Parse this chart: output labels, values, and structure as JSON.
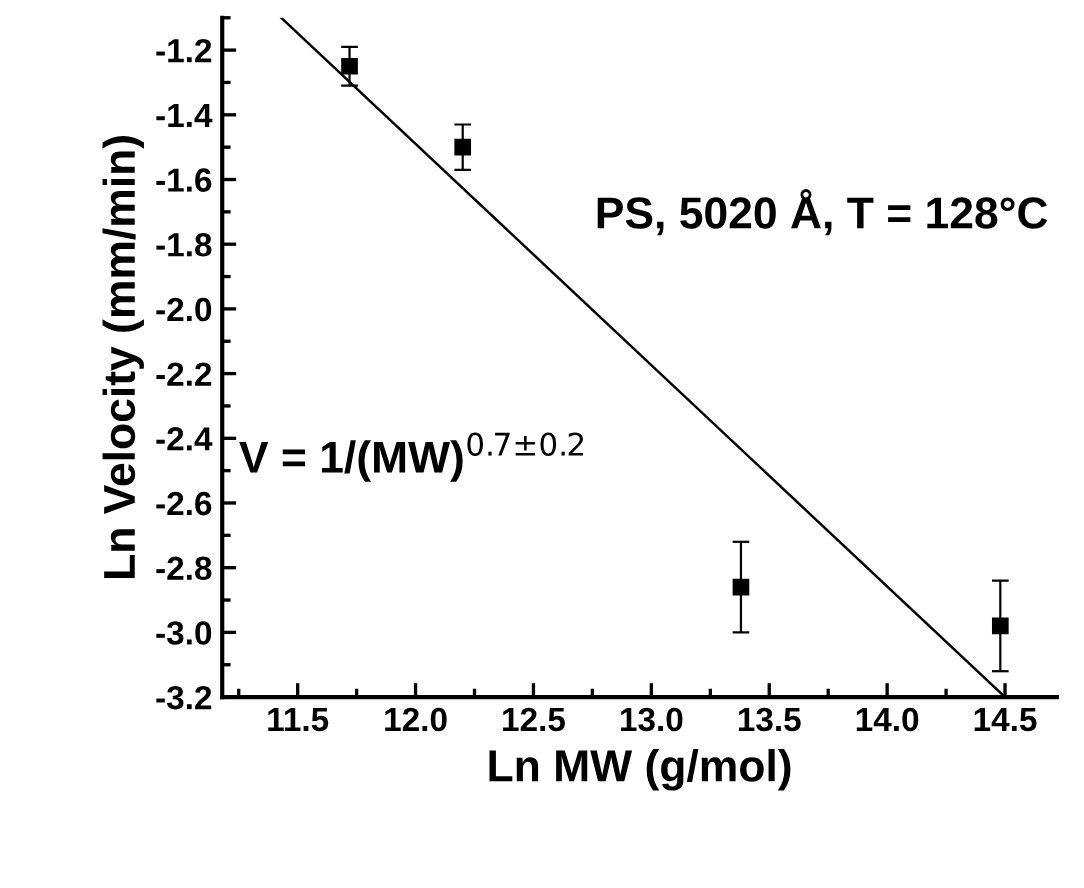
{
  "chart_data": {
    "type": "scatter",
    "xlabel": "Ln MW (g/mol)",
    "ylabel": "Ln Velocity (mm/min)",
    "annotations": [
      "PS, 5020 Å, T = 128°C",
      "V = 1/(MW)$^{0.7±0.2}$"
    ],
    "series": [
      {
        "color": "#000000",
        "x": [
          11.72,
          12.2,
          13.38,
          14.48
        ],
        "values": [
          -1.25,
          -1.5,
          -2.86,
          -2.98
        ],
        "errors": [
          0.06,
          0.07,
          0.14,
          0.14
        ],
        "marker": "square"
      },
      {
        "type": "line",
        "color": "#000000",
        "x": [
          11.43,
          14.5
        ],
        "values": [
          -1.1,
          -3.2
        ],
        "line_style": "solid",
        "marker": "none"
      }
    ],
    "xlim": [
      11.18,
      14.72
    ],
    "ylim": [
      -3.2,
      -1.1
    ],
    "xticks": [
      11.5,
      {
        "value": 12,
        "label": "12.0"
      },
      12.5,
      {
        "value": 13,
        "label": "13.0"
      },
      13.5,
      {
        "value": 14,
        "label": "14.0"
      },
      14.5
    ],
    "yticks": [
      -3.2,
      {
        "value": -3,
        "label": "-3.0"
      },
      -2.8,
      -2.6,
      -2.4,
      -2.2,
      {
        "value": -2,
        "label": "-2.0"
      },
      -1.8,
      -1.6,
      -1.4,
      -1.2
    ],
    "grid": false,
    "legend": false
  }
}
